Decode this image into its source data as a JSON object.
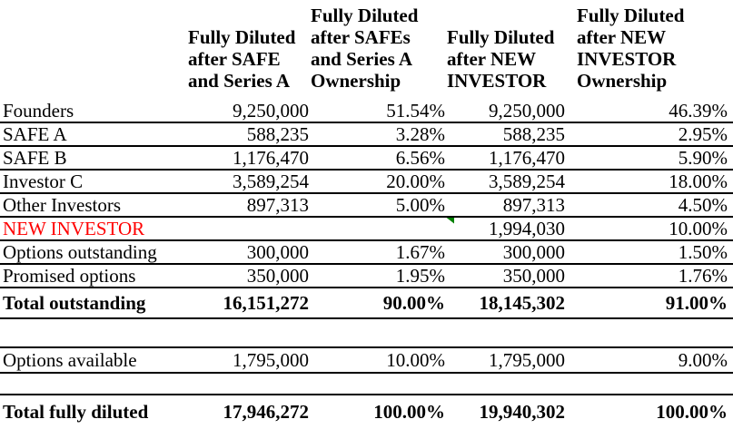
{
  "colors": {
    "new_investor_label": "#FF0000",
    "error_indicator": "#008000",
    "text": "#000000",
    "background": "#ffffff"
  },
  "headers": {
    "safe_series_a": [
      "Fully Diluted",
      "after SAFE",
      "and Series A"
    ],
    "safe_series_a_ownership": [
      "Fully Diluted",
      "after SAFEs",
      "and Series A",
      "Ownership"
    ],
    "new_investor": [
      "Fully Diluted",
      "after NEW",
      "INVESTOR"
    ],
    "new_investor_ownership": [
      "Fully Diluted",
      "after NEW",
      "INVESTOR",
      "Ownership"
    ]
  },
  "rows": {
    "founders": {
      "label": "Founders",
      "shares_a": "9,250,000",
      "pct_a": "51.54%",
      "shares_b": "9,250,000",
      "pct_b": "46.39%"
    },
    "safe_a": {
      "label": "SAFE A",
      "shares_a": "588,235",
      "pct_a": "3.28%",
      "shares_b": "588,235",
      "pct_b": "2.95%"
    },
    "safe_b": {
      "label": "SAFE B",
      "shares_a": "1,176,470",
      "pct_a": "6.56%",
      "shares_b": "1,176,470",
      "pct_b": "5.90%"
    },
    "investor_c": {
      "label": "Investor C",
      "shares_a": "3,589,254",
      "pct_a": "20.00%",
      "shares_b": "3,589,254",
      "pct_b": "18.00%"
    },
    "other_investors": {
      "label": "Other Investors",
      "shares_a": "897,313",
      "pct_a": "5.00%",
      "shares_b": "897,313",
      "pct_b": "4.50%"
    },
    "new_investor": {
      "label": "NEW INVESTOR",
      "shares_a": "",
      "pct_a": "",
      "shares_b": "1,994,030",
      "pct_b": "10.00%"
    },
    "options_outstanding": {
      "label": "Options outstanding",
      "shares_a": "300,000",
      "pct_a": "1.67%",
      "shares_b": "300,000",
      "pct_b": "1.50%"
    },
    "promised_options": {
      "label": "Promised options",
      "shares_a": "350,000",
      "pct_a": "1.95%",
      "shares_b": "350,000",
      "pct_b": "1.76%"
    },
    "total_outstanding": {
      "label": "Total outstanding",
      "shares_a": "16,151,272",
      "pct_a": "90.00%",
      "shares_b": "18,145,302",
      "pct_b": "91.00%"
    },
    "options_available": {
      "label": "Options available",
      "shares_a": "1,795,000",
      "pct_a": "10.00%",
      "shares_b": "1,795,000",
      "pct_b": "9.00%"
    },
    "total_fully_diluted": {
      "label": "Total fully diluted",
      "shares_a": "17,946,272",
      "pct_a": "100.00%",
      "shares_b": "19,940,302",
      "pct_b": "100.00%"
    }
  }
}
